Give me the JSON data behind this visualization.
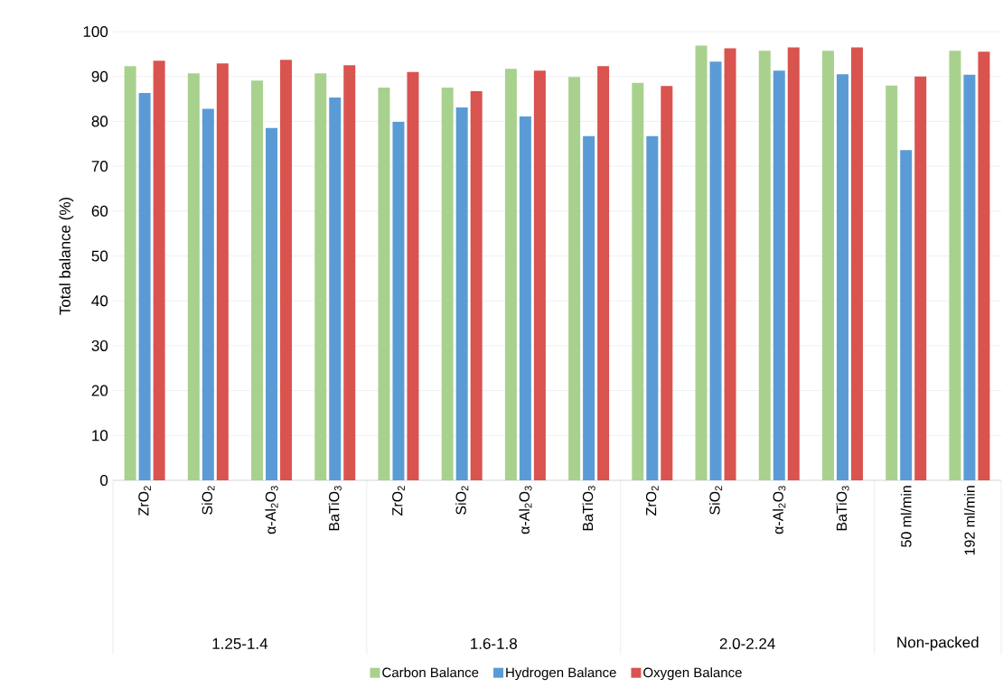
{
  "chart_data": {
    "type": "bar",
    "ylabel": "Total balance (%)",
    "categories": [
      "ZrO$_{2}$",
      "SiO$_{2}$",
      "α-Al$_{2}$O$_{3}$",
      "BaTiO$_{3}$",
      "ZrO$_{2}$",
      "SiO$_{2}$",
      "α-Al$_{2}$O$_{3}$",
      "BaTiO$_{3}$",
      "ZrO$_{2}$",
      "SiO$_{2}$",
      "α-Al$_{2}$O$_{3}$",
      "BaTiO$_{3}$",
      "50 ml/min",
      "192 ml/min"
    ],
    "series": [
      {
        "name": "Carbon Balance",
        "color": "#a9d18e",
        "values": [
          92.3,
          90.7,
          89.1,
          90.7,
          87.5,
          87.5,
          91.7,
          89.9,
          88.6,
          96.9,
          95.7,
          95.7,
          88.0,
          95.7
        ]
      },
      {
        "name": "Hydrogen Balance",
        "color": "#5b9bd5",
        "values": [
          86.3,
          82.8,
          78.5,
          85.3,
          79.9,
          83.1,
          81.1,
          76.7,
          76.7,
          93.3,
          91.3,
          90.5,
          73.6,
          90.4
        ]
      },
      {
        "name": "Oxygen Balance",
        "color": "#d9534f",
        "values": [
          93.5,
          92.9,
          93.7,
          92.5,
          91.0,
          86.7,
          91.3,
          92.3,
          87.9,
          96.3,
          96.5,
          96.5,
          90.0,
          95.5
        ]
      }
    ],
    "annotations": [
      "1.25-1.4",
      "1.6-1.8",
      "2.0-2.24",
      "Non-packed"
    ],
    "ylim": [
      0,
      100
    ],
    "yticks": [
      0,
      10,
      20,
      30,
      40,
      50,
      60,
      70,
      80,
      90,
      100
    ],
    "grid": "y",
    "legend": "bottom"
  }
}
